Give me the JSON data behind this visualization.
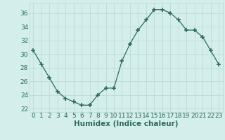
{
  "x": [
    0,
    1,
    2,
    3,
    4,
    5,
    6,
    7,
    8,
    9,
    10,
    11,
    12,
    13,
    14,
    15,
    16,
    17,
    18,
    19,
    20,
    21,
    22,
    23
  ],
  "y": [
    30.5,
    28.5,
    26.5,
    24.5,
    23.5,
    23.0,
    22.5,
    22.5,
    24.0,
    25.0,
    25.0,
    29.0,
    31.5,
    33.5,
    35.0,
    36.5,
    36.5,
    36.0,
    35.0,
    33.5,
    33.5,
    32.5,
    30.5,
    28.5
  ],
  "line_color": "#2e6b5e",
  "marker": "+",
  "marker_size": 4,
  "bg_color": "#d4eeec",
  "grid_color": "#b8d8d5",
  "xlabel": "Humidex (Indice chaleur)",
  "xlim": [
    -0.5,
    23.5
  ],
  "ylim": [
    21.5,
    37.5
  ],
  "yticks": [
    22,
    24,
    26,
    28,
    30,
    32,
    34,
    36
  ],
  "xticks": [
    0,
    1,
    2,
    3,
    4,
    5,
    6,
    7,
    8,
    9,
    10,
    11,
    12,
    13,
    14,
    15,
    16,
    17,
    18,
    19,
    20,
    21,
    22,
    23
  ],
  "tick_fontsize": 6.5,
  "xlabel_fontsize": 7.5
}
